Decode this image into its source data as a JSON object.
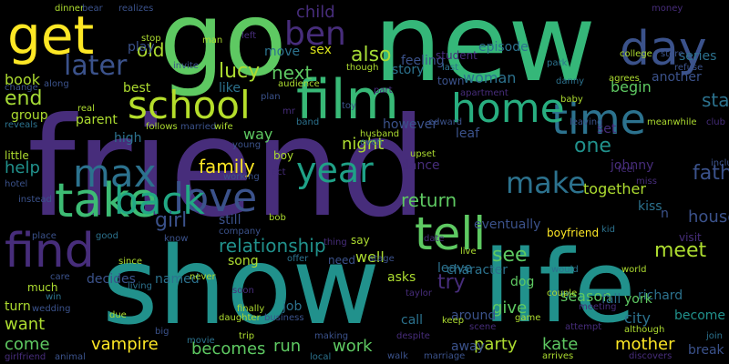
{
  "palette": {
    "background": "#000000",
    "purple_dark": "#440154",
    "purple": "#472d7b",
    "indigo": "#3b528b",
    "blue": "#2c728e",
    "teal": "#21918c",
    "green_teal": "#28ae80",
    "green": "#5ec962",
    "lime": "#addc30",
    "yellow": "#fde725"
  },
  "words": [
    {
      "text": "friend",
      "color": "#472d7b"
    },
    {
      "text": "new",
      "color": "#35b779"
    },
    {
      "text": "go",
      "color": "#5ec962"
    },
    {
      "text": "show",
      "color": "#21918c"
    },
    {
      "text": "life",
      "color": "#21918c"
    },
    {
      "text": "get",
      "color": "#fde725"
    },
    {
      "text": "film",
      "color": "#38b977"
    },
    {
      "text": "time",
      "color": "#2c728e"
    },
    {
      "text": "day",
      "color": "#3b528b"
    },
    {
      "text": "home",
      "color": "#28ae80"
    },
    {
      "text": "school",
      "color": "#b5de2b"
    },
    {
      "text": "love",
      "color": "#3b528b"
    },
    {
      "text": "tell",
      "color": "#5ec962"
    },
    {
      "text": "find",
      "color": "#472d7b"
    },
    {
      "text": "take",
      "color": "#3dbc74"
    },
    {
      "text": "max",
      "color": "#2c728e"
    },
    {
      "text": "back",
      "color": "#22a884"
    },
    {
      "text": "ben",
      "color": "#472d7b"
    },
    {
      "text": "later",
      "color": "#3b528b"
    },
    {
      "text": "year",
      "color": "#1fa187"
    },
    {
      "text": "make",
      "color": "#2c728e"
    },
    {
      "text": "one",
      "color": "#21918c"
    },
    {
      "text": "father",
      "color": "#3b528b"
    },
    {
      "text": "start",
      "color": "#2c728e"
    },
    {
      "text": "also",
      "color": "#a5db36"
    },
    {
      "text": "child",
      "color": "#472d7b"
    },
    {
      "text": "old",
      "color": "#addc30"
    },
    {
      "text": "episode",
      "color": "#2c728e"
    },
    {
      "text": "lucy",
      "color": "#addc30"
    },
    {
      "text": "next",
      "color": "#5ec962"
    },
    {
      "text": "sex",
      "color": "#d8e219"
    },
    {
      "text": "move",
      "color": "#2c728e"
    },
    {
      "text": "woman",
      "color": "#2c728e"
    },
    {
      "text": "begin",
      "color": "#5ec962"
    },
    {
      "text": "another",
      "color": "#3b528b"
    },
    {
      "text": "play",
      "color": "#3b528b"
    },
    {
      "text": "best",
      "color": "#addc30"
    },
    {
      "text": "like",
      "color": "#2c728e"
    },
    {
      "text": "parent",
      "color": "#addc30"
    },
    {
      "text": "end",
      "color": "#a5db36"
    },
    {
      "text": "group",
      "color": "#addc30"
    },
    {
      "text": "book",
      "color": "#addc30"
    },
    {
      "text": "way",
      "color": "#5ec962"
    },
    {
      "text": "high",
      "color": "#2c728e"
    },
    {
      "text": "night",
      "color": "#addc30"
    },
    {
      "text": "family",
      "color": "#fde725"
    },
    {
      "text": "help",
      "color": "#21918c"
    },
    {
      "text": "girl",
      "color": "#3b528b"
    },
    {
      "text": "dance",
      "color": "#472d7b"
    },
    {
      "text": "return",
      "color": "#5ec962"
    },
    {
      "text": "together",
      "color": "#addc30"
    },
    {
      "text": "meet",
      "color": "#addc30"
    },
    {
      "text": "house",
      "color": "#3b528b"
    },
    {
      "text": "kiss",
      "color": "#2c728e"
    },
    {
      "text": "relationship",
      "color": "#21918c"
    },
    {
      "text": "well",
      "color": "#addc30"
    },
    {
      "text": "see",
      "color": "#5ec962"
    },
    {
      "text": "try",
      "color": "#472d7b"
    },
    {
      "text": "character",
      "color": "#2c728e"
    },
    {
      "text": "leave",
      "color": "#2c728e"
    },
    {
      "text": "named",
      "color": "#2c728e"
    },
    {
      "text": "song",
      "color": "#addc30"
    },
    {
      "text": "decides",
      "color": "#3b528b"
    },
    {
      "text": "give",
      "color": "#5ec962"
    },
    {
      "text": "season",
      "color": "#5ec962"
    },
    {
      "text": "fall",
      "color": "#2c728e"
    },
    {
      "text": "richard",
      "color": "#2c728e"
    },
    {
      "text": "york",
      "color": "#5ec962"
    },
    {
      "text": "city",
      "color": "#2c728e"
    },
    {
      "text": "become",
      "color": "#21918c"
    },
    {
      "text": "want",
      "color": "#addc30"
    },
    {
      "text": "come",
      "color": "#5ec962"
    },
    {
      "text": "vampire",
      "color": "#fde725"
    },
    {
      "text": "becomes",
      "color": "#5ec962"
    },
    {
      "text": "run",
      "color": "#5ec962"
    },
    {
      "text": "work",
      "color": "#5ec962"
    },
    {
      "text": "party",
      "color": "#addc30"
    },
    {
      "text": "kate",
      "color": "#5ec962"
    },
    {
      "text": "mother",
      "color": "#fde725"
    },
    {
      "text": "away",
      "color": "#3b528b"
    },
    {
      "text": "break",
      "color": "#3b528b"
    },
    {
      "text": "asks",
      "color": "#addc30"
    },
    {
      "text": "call",
      "color": "#2c728e"
    },
    {
      "text": "around",
      "color": "#3b528b"
    },
    {
      "text": "dog",
      "color": "#5ec962"
    },
    {
      "text": "job",
      "color": "#2c728e"
    },
    {
      "text": "feeling",
      "color": "#3b528b"
    },
    {
      "text": "story",
      "color": "#2c728e"
    },
    {
      "text": "however",
      "color": "#3b528b"
    },
    {
      "text": "leaf",
      "color": "#3b528b"
    },
    {
      "text": "set",
      "color": "#472d7b"
    },
    {
      "text": "series",
      "color": "#2c728e"
    },
    {
      "text": "boyfriend",
      "color": "#fde725"
    },
    {
      "text": "eventually",
      "color": "#3b528b"
    },
    {
      "text": "johnny",
      "color": "#472d7b"
    },
    {
      "text": "visit",
      "color": "#472d7b"
    },
    {
      "text": "including",
      "color": "#3b528b"
    },
    {
      "text": "still",
      "color": "#3b528b"
    },
    {
      "text": "say",
      "color": "#addc30"
    },
    {
      "text": "turn",
      "color": "#addc30"
    },
    {
      "text": "much",
      "color": "#addc30"
    },
    {
      "text": "boy",
      "color": "#addc30"
    },
    {
      "text": "young",
      "color": "#3b528b"
    },
    {
      "text": "little",
      "color": "#addc30"
    },
    {
      "text": "bob",
      "color": "#addc30"
    },
    {
      "text": "stage",
      "color": "#3b528b"
    },
    {
      "text": "need",
      "color": "#3b528b"
    },
    {
      "text": "student",
      "color": "#472d7b"
    },
    {
      "text": "town",
      "color": "#3b528b"
    },
    {
      "text": "apartment",
      "color": "#472d7b"
    },
    {
      "text": "last",
      "color": "#2c728e"
    },
    {
      "text": "danny",
      "color": "#2c728e"
    },
    {
      "text": "park",
      "color": "#2c728e"
    },
    {
      "text": "college",
      "color": "#addc30"
    },
    {
      "text": "store",
      "color": "#3b528b"
    },
    {
      "text": "refuse",
      "color": "#3b528b"
    },
    {
      "text": "agrees",
      "color": "#addc30"
    },
    {
      "text": "money",
      "color": "#472d7b"
    },
    {
      "text": "baby",
      "color": "#addc30"
    },
    {
      "text": "meanwhile",
      "color": "#addc30"
    },
    {
      "text": "club",
      "color": "#472d7b"
    },
    {
      "text": "leaving",
      "color": "#3b528b"
    },
    {
      "text": "dinner",
      "color": "#addc30"
    },
    {
      "text": "bear",
      "color": "#3b528b"
    },
    {
      "text": "realizes",
      "color": "#3b528b"
    },
    {
      "text": "stop",
      "color": "#addc30"
    },
    {
      "text": "real",
      "color": "#addc30"
    },
    {
      "text": "change",
      "color": "#3b528b"
    },
    {
      "text": "along",
      "color": "#3b528b"
    },
    {
      "text": "reveals",
      "color": "#2c728e"
    },
    {
      "text": "follows",
      "color": "#addc30"
    },
    {
      "text": "married",
      "color": "#3b528b"
    },
    {
      "text": "wife",
      "color": "#addc30"
    },
    {
      "text": "invite",
      "color": "#3b528b"
    },
    {
      "text": "man",
      "color": "#addc30"
    },
    {
      "text": "left",
      "color": "#472d7b"
    },
    {
      "text": "audience",
      "color": "#addc30"
    },
    {
      "text": "band",
      "color": "#2c728e"
    },
    {
      "text": "toy",
      "color": "#3b528b"
    },
    {
      "text": "though",
      "color": "#addc30"
    },
    {
      "text": "edward",
      "color": "#3b528b"
    },
    {
      "text": "husband",
      "color": "#addc30"
    },
    {
      "text": "even",
      "color": "#2c728e"
    },
    {
      "text": "upset",
      "color": "#addc30"
    },
    {
      "text": "working",
      "color": "#3b528b"
    },
    {
      "text": "act",
      "color": "#472d7b"
    },
    {
      "text": "company",
      "color": "#3b528b"
    },
    {
      "text": "hotel",
      "color": "#3b528b"
    },
    {
      "text": "instead",
      "color": "#3b528b"
    },
    {
      "text": "place",
      "color": "#3b528b"
    },
    {
      "text": "good",
      "color": "#2c728e"
    },
    {
      "text": "since",
      "color": "#addc30"
    },
    {
      "text": "know",
      "color": "#3b528b"
    },
    {
      "text": "never",
      "color": "#addc30"
    },
    {
      "text": "thing",
      "color": "#472d7b"
    },
    {
      "text": "offer",
      "color": "#2c728e"
    },
    {
      "text": "date",
      "color": "#472d7b"
    },
    {
      "text": "live",
      "color": "#addc30"
    },
    {
      "text": "would",
      "color": "#2c728e"
    },
    {
      "text": "kid",
      "color": "#2c728e"
    },
    {
      "text": "world",
      "color": "#addc30"
    },
    {
      "text": "stay",
      "color": "#2c728e"
    },
    {
      "text": "couple",
      "color": "#addc30"
    },
    {
      "text": "meeting",
      "color": "#472d7b"
    },
    {
      "text": "although",
      "color": "#addc30"
    },
    {
      "text": "join",
      "color": "#2c728e"
    },
    {
      "text": "game",
      "color": "#addc30"
    },
    {
      "text": "attempt",
      "color": "#472d7b"
    },
    {
      "text": "arrives",
      "color": "#addc30"
    },
    {
      "text": "discovers",
      "color": "#472d7b"
    },
    {
      "text": "scene",
      "color": "#472d7b"
    },
    {
      "text": "marriage",
      "color": "#3b528b"
    },
    {
      "text": "keep",
      "color": "#addc30"
    },
    {
      "text": "despite",
      "color": "#472d7b"
    },
    {
      "text": "walk",
      "color": "#3b528b"
    },
    {
      "text": "local",
      "color": "#2c728e"
    },
    {
      "text": "making",
      "color": "#3b528b"
    },
    {
      "text": "business",
      "color": "#3b528b"
    },
    {
      "text": "finally",
      "color": "#addc30"
    },
    {
      "text": "trip",
      "color": "#addc30"
    },
    {
      "text": "daughter",
      "color": "#addc30"
    },
    {
      "text": "movie",
      "color": "#2c728e"
    },
    {
      "text": "soon",
      "color": "#472d7b"
    },
    {
      "text": "living",
      "color": "#2c728e"
    },
    {
      "text": "due",
      "color": "#addc30"
    },
    {
      "text": "big",
      "color": "#3b528b"
    },
    {
      "text": "animal",
      "color": "#3b528b"
    },
    {
      "text": "girlfriend",
      "color": "#472d7b"
    },
    {
      "text": "wedding",
      "color": "#3b528b"
    },
    {
      "text": "win",
      "color": "#2c728e"
    },
    {
      "text": "care",
      "color": "#3b528b"
    },
    {
      "text": "taylor",
      "color": "#472d7b"
    },
    {
      "text": "miss",
      "color": "#472d7b"
    },
    {
      "text": "feel",
      "color": "#472d7b"
    },
    {
      "text": "plan",
      "color": "#3b528b"
    },
    {
      "text": "part",
      "color": "#472d7b"
    },
    {
      "text": "mr",
      "color": "#472d7b"
    },
    {
      "text": "n",
      "color": "#3b528b"
    }
  ]
}
